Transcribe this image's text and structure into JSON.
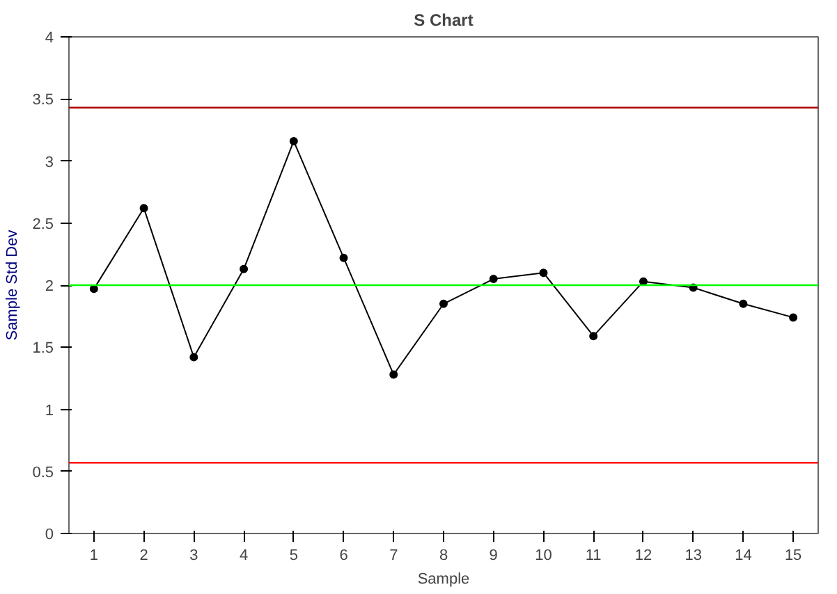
{
  "chart_data": {
    "type": "line",
    "title": "S Chart",
    "xlabel": "Sample",
    "ylabel": "Sample Std Dev",
    "x": [
      1,
      2,
      3,
      4,
      5,
      6,
      7,
      8,
      9,
      10,
      11,
      12,
      13,
      14,
      15
    ],
    "xlim": [
      0.5,
      15.5
    ],
    "xticks": [
      1,
      2,
      3,
      4,
      5,
      6,
      7,
      8,
      9,
      10,
      11,
      12,
      13,
      14,
      15
    ],
    "series": [
      {
        "color": "#000000",
        "values": [
          1.97,
          2.62,
          1.42,
          2.13,
          3.16,
          2.22,
          1.28,
          1.85,
          2.05,
          2.1,
          1.59,
          2.03,
          1.98,
          1.85,
          1.74
        ]
      }
    ],
    "ylim": [
      0,
      4
    ],
    "yticks": [
      0,
      0.5,
      1,
      1.5,
      2,
      2.5,
      3,
      3.5,
      4
    ],
    "ref_lines": [
      {
        "axis": "y",
        "value": 3.43,
        "color": "#b00000"
      },
      {
        "axis": "y",
        "value": 2.0,
        "color": "#00ff00"
      },
      {
        "axis": "y",
        "value": 0.57,
        "color": "#ff0000"
      }
    ],
    "marker": "circle",
    "line_style": "solid",
    "grid": false
  }
}
